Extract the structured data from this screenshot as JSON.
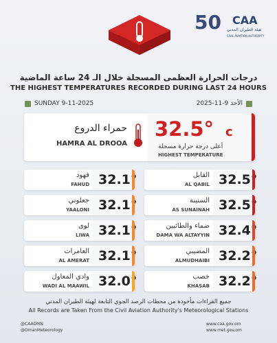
{
  "header": {
    "anniversary": "50",
    "logo": "CAA",
    "authority_ar": "هيئة الطيران المدني",
    "authority_en": "CIVIL AVIATION AUTHORITY"
  },
  "title_ar": "درجات الحرارة العظمى المسجلة خلال الـ 24 ساعة الماضية",
  "title_en": "THE HIGHEST TEMPERATURES RECORDED DURING LAST 24 HOURS",
  "date_en": "SUNDAY 9-11-2025",
  "date_ar": "الأحد 9-11-2025",
  "highlight": {
    "temperature": "32.5°",
    "unit": "c",
    "label_ar": "أعلى درجة حرارة مسجلة",
    "label_en": "HIGHEST TEMPERATURE",
    "station_ar": "حمراء الدروع",
    "station_en": "HAMRA AL DROOA"
  },
  "stations": {
    "left": [
      {
        "name_ar": "فهود",
        "name_en": "FAHUD",
        "temperature": "32.1°"
      },
      {
        "name_ar": "جعلوني",
        "name_en": "YAALONI",
        "temperature": "32.1°"
      },
      {
        "name_ar": "لوى",
        "name_en": "LIWA",
        "temperature": "32.1°"
      },
      {
        "name_ar": "العامرات",
        "name_en": "AL AMERAT",
        "temperature": "32.1°"
      },
      {
        "name_ar": "وادي المعاول",
        "name_en": "WADI AL MAAWIL",
        "temperature": "32.0°"
      }
    ],
    "right": [
      {
        "name_ar": "القابل",
        "name_en": "AL QABIL",
        "temperature": "32.5°"
      },
      {
        "name_ar": "السنينة",
        "name_en": "AS SUNAINAH",
        "temperature": "32.5°"
      },
      {
        "name_ar": "ضماء والطائيين",
        "name_en": "DAMA WA ALTAYYIN",
        "temperature": "32.4°"
      },
      {
        "name_ar": "المضيبي",
        "name_en": "ALMUDHAIBI",
        "temperature": "32.2°"
      },
      {
        "name_ar": "خصب",
        "name_en": "KHASAB",
        "temperature": "32.2°"
      }
    ]
  },
  "footer": {
    "note_ar": "جميع القراءات مأخوذة من محطات الرصد الجوي التابعة لهيئة الطيران المدني",
    "note_en": "All Records are Taken From the Civil Aviation Authority's Meteorological Stations",
    "social_1": "@CAAOMN",
    "social_2": "@OmanMeteorology",
    "web_1": "www.caa.gov.om",
    "web_2": "www.met.gov.om"
  }
}
